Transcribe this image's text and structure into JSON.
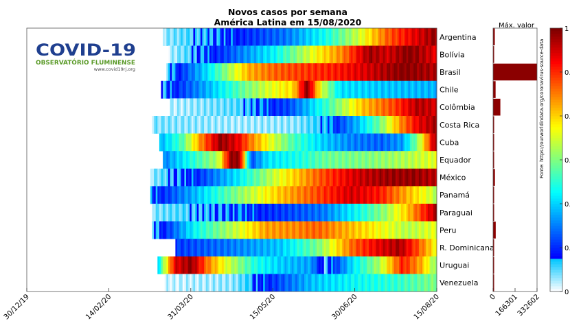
{
  "chart_data": {
    "type": "heatmap",
    "title": "Novos casos por semana",
    "subtitle": "América Latina em 15/08/2020",
    "x_tick_labels": [
      "30/12/19",
      "14/02/20",
      "31/03/20",
      "15/05/20",
      "30/06/20",
      "15/08/20"
    ],
    "rows": [
      "Argentina",
      "Bolívia",
      "Brasil",
      "Chile",
      "Colômbia",
      "Costa Rica",
      "Cuba",
      "Equador",
      "México",
      "Panamá",
      "Paraguai",
      "Peru",
      "R. Dominicana",
      "Uruguai",
      "Venezuela"
    ],
    "row_start_day": [
      76,
      79,
      78,
      75,
      80,
      70,
      74,
      76,
      69,
      69,
      70,
      70,
      83,
      73,
      77
    ],
    "row_profiles": [
      [
        [
          0,
          0.05
        ],
        [
          0.25,
          0.14
        ],
        [
          0.45,
          0.24
        ],
        [
          0.6,
          0.4
        ],
        [
          0.72,
          0.58
        ],
        [
          0.82,
          0.78
        ],
        [
          0.92,
          0.9
        ],
        [
          1,
          0.98
        ]
      ],
      [
        [
          0,
          0.03
        ],
        [
          0.2,
          0.18
        ],
        [
          0.4,
          0.38
        ],
        [
          0.55,
          0.62
        ],
        [
          0.65,
          0.75
        ],
        [
          0.75,
          0.97
        ],
        [
          0.82,
          0.92
        ],
        [
          0.9,
          1
        ],
        [
          1,
          0.9
        ]
      ],
      [
        [
          0,
          0.08
        ],
        [
          0.15,
          0.35
        ],
        [
          0.3,
          0.7
        ],
        [
          0.4,
          0.78
        ],
        [
          0.5,
          0.82
        ],
        [
          0.62,
          0.85
        ],
        [
          0.75,
          0.92
        ],
        [
          0.88,
          1
        ],
        [
          1,
          0.95
        ]
      ],
      [
        [
          0,
          0.1
        ],
        [
          0.15,
          0.28
        ],
        [
          0.3,
          0.48
        ],
        [
          0.4,
          0.6
        ],
        [
          0.48,
          0.66
        ],
        [
          0.53,
          1
        ],
        [
          0.58,
          0.6
        ],
        [
          0.65,
          0.35
        ],
        [
          0.8,
          0.32
        ],
        [
          1,
          0.3
        ]
      ],
      [
        [
          0,
          0.03
        ],
        [
          0.25,
          0.08
        ],
        [
          0.45,
          0.2
        ],
        [
          0.6,
          0.45
        ],
        [
          0.72,
          0.68
        ],
        [
          0.85,
          0.82
        ],
        [
          0.93,
          0.95
        ],
        [
          1,
          0.92
        ]
      ],
      [
        [
          0,
          0.06
        ],
        [
          0.3,
          0.04
        ],
        [
          0.5,
          0.05
        ],
        [
          0.62,
          0.12
        ],
        [
          0.72,
          0.3
        ],
        [
          0.8,
          0.48
        ],
        [
          0.88,
          0.75
        ],
        [
          0.94,
          0.9
        ],
        [
          1,
          0.96
        ]
      ],
      [
        [
          0,
          0.3
        ],
        [
          0.08,
          0.45
        ],
        [
          0.15,
          0.75
        ],
        [
          0.22,
          0.98
        ],
        [
          0.28,
          0.9
        ],
        [
          0.33,
          0.75
        ],
        [
          0.4,
          0.6
        ],
        [
          0.48,
          0.45
        ],
        [
          0.6,
          0.32
        ],
        [
          0.7,
          0.25
        ],
        [
          0.8,
          0.22
        ],
        [
          0.88,
          0.28
        ],
        [
          0.94,
          0.55
        ],
        [
          1,
          0.98
        ]
      ],
      [
        [
          0,
          0.25
        ],
        [
          0.1,
          0.4
        ],
        [
          0.2,
          0.55
        ],
        [
          0.25,
          1
        ],
        [
          0.28,
          0.95
        ],
        [
          0.32,
          0.2
        ],
        [
          0.38,
          0.35
        ],
        [
          0.5,
          0.4
        ],
        [
          0.6,
          0.48
        ],
        [
          0.75,
          0.5
        ],
        [
          0.9,
          0.55
        ],
        [
          1,
          0.6
        ]
      ],
      [
        [
          0,
          0.05
        ],
        [
          0.15,
          0.15
        ],
        [
          0.3,
          0.35
        ],
        [
          0.45,
          0.6
        ],
        [
          0.6,
          0.8
        ],
        [
          0.72,
          0.92
        ],
        [
          0.82,
          0.97
        ],
        [
          0.92,
          0.98
        ],
        [
          1,
          0.94
        ]
      ],
      [
        [
          0,
          0.12
        ],
        [
          0.15,
          0.3
        ],
        [
          0.3,
          0.5
        ],
        [
          0.45,
          0.68
        ],
        [
          0.6,
          0.82
        ],
        [
          0.7,
          0.92
        ],
        [
          0.8,
          0.86
        ],
        [
          0.9,
          0.7
        ],
        [
          1,
          0.55
        ]
      ],
      [
        [
          0,
          0.06
        ],
        [
          0.25,
          0.12
        ],
        [
          0.45,
          0.18
        ],
        [
          0.6,
          0.24
        ],
        [
          0.72,
          0.38
        ],
        [
          0.82,
          0.52
        ],
        [
          0.9,
          0.68
        ],
        [
          1,
          0.96
        ]
      ],
      [
        [
          0,
          0.08
        ],
        [
          0.15,
          0.38
        ],
        [
          0.3,
          0.58
        ],
        [
          0.4,
          0.72
        ],
        [
          0.5,
          0.74
        ],
        [
          0.58,
          0.78
        ],
        [
          0.66,
          0.72
        ],
        [
          0.8,
          0.62
        ],
        [
          0.9,
          0.55
        ],
        [
          1,
          0.6
        ]
      ],
      [
        [
          0,
          0.18
        ],
        [
          0.2,
          0.24
        ],
        [
          0.4,
          0.32
        ],
        [
          0.55,
          0.5
        ],
        [
          0.68,
          0.78
        ],
        [
          0.78,
          0.9
        ],
        [
          0.86,
          0.96
        ],
        [
          0.93,
          0.8
        ],
        [
          1,
          0.62
        ]
      ],
      [
        [
          0,
          0.35
        ],
        [
          0.06,
          0.9
        ],
        [
          0.12,
          0.98
        ],
        [
          0.18,
          0.75
        ],
        [
          0.25,
          0.58
        ],
        [
          0.35,
          0.4
        ],
        [
          0.45,
          0.32
        ],
        [
          0.55,
          0.28
        ],
        [
          0.6,
          0.08
        ],
        [
          0.7,
          0.35
        ],
        [
          0.8,
          0.55
        ],
        [
          0.88,
          0.85
        ],
        [
          0.95,
          0.7
        ],
        [
          1,
          0.5
        ]
      ],
      [
        [
          0,
          0.02
        ],
        [
          0.25,
          0.05
        ],
        [
          0.4,
          0.18
        ],
        [
          0.55,
          0.32
        ],
        [
          0.7,
          0.38
        ],
        [
          0.85,
          0.42
        ],
        [
          1,
          0.5
        ]
      ]
    ],
    "max_value_title": "Máx. valor",
    "max_value_ticks": [
      "0",
      "166301",
      "332602"
    ],
    "max_values": [
      13000,
      1500,
      332602,
      19000,
      55000,
      3500,
      500,
      1600,
      14000,
      5500,
      1500,
      20000,
      3500,
      150,
      2000
    ],
    "colorbar_ticks": [
      "0",
      "0.",
      "0.",
      "0.",
      "0.",
      "0.",
      "1"
    ],
    "source_note": "Fonte: https://ourworldindata.org/coronavirus-source-data",
    "colormap": "jet"
  },
  "logo": {
    "title": "COVID-19",
    "subtitle": "OBSERVATÓRIO FLUMINENSE",
    "url": "www.covid19rj.org",
    "colors": {
      "blue": "#1f3f8f",
      "green": "#5a9a28"
    }
  }
}
